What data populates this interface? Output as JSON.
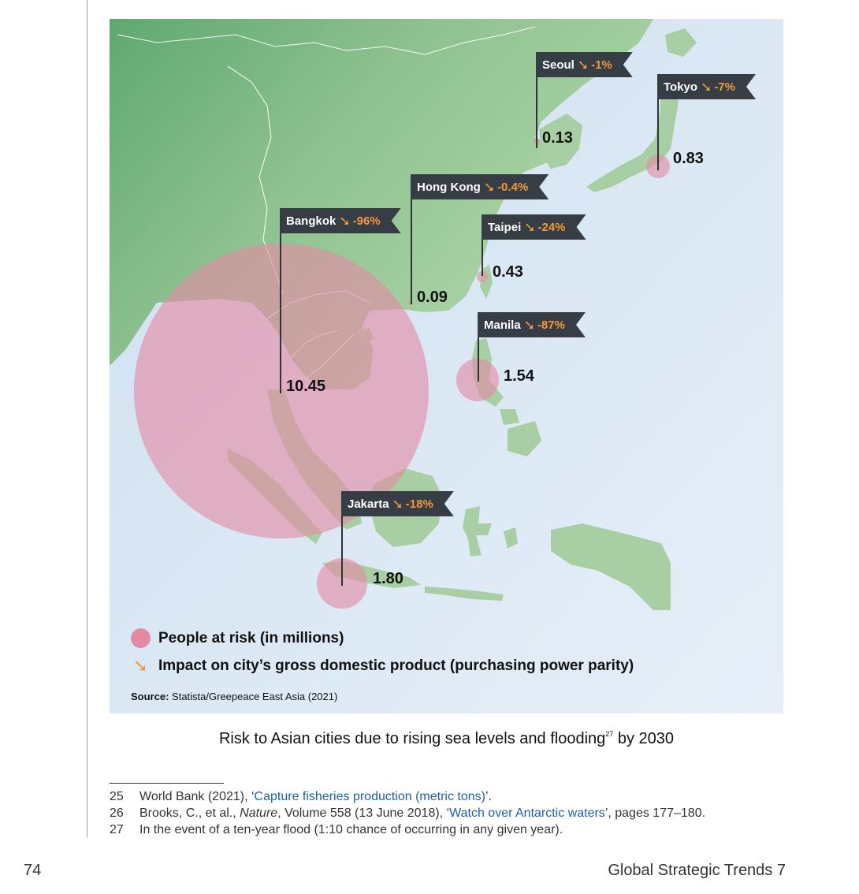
{
  "map": {
    "colors": {
      "sea": "#d8e6f3",
      "land": "#a6cfa2",
      "land_dark": "#5fa870",
      "border": "#ffffff",
      "risk_bubble": "#e48aa5",
      "label_bg": "#363d44",
      "impact_accent": "#f29a3a"
    },
    "cities": [
      {
        "name": "Seoul",
        "impact_icon": "arrow-down-right-icon",
        "impact": "-1%",
        "people_at_risk": "0.13",
        "people_millions": 0.13
      },
      {
        "name": "Tokyo",
        "impact_icon": "arrow-down-right-icon",
        "impact": "-7%",
        "people_at_risk": "0.83",
        "people_millions": 0.83
      },
      {
        "name": "Hong Kong",
        "impact_icon": "arrow-down-right-icon",
        "impact": "-0.4%",
        "people_at_risk": "0.09",
        "people_millions": 0.09
      },
      {
        "name": "Bangkok",
        "impact_icon": "arrow-down-right-icon",
        "impact": "-96%",
        "people_at_risk": "10.45",
        "people_millions": 10.45
      },
      {
        "name": "Taipei",
        "impact_icon": "arrow-down-right-icon",
        "impact": "-24%",
        "people_at_risk": "0.43",
        "people_millions": 0.43
      },
      {
        "name": "Manila",
        "impact_icon": "arrow-down-right-icon",
        "impact": "-87%",
        "people_at_risk": "1.54",
        "people_millions": 1.54
      },
      {
        "name": "Jakarta",
        "impact_icon": "arrow-down-right-icon",
        "impact": "-18%",
        "people_at_risk": "1.80",
        "people_millions": 1.8
      }
    ],
    "legend": {
      "people": "People at risk (in millions)",
      "impact": "Impact on city’s gross domestic product (purchasing power parity)",
      "impact_icon": "arrow-down-right-icon"
    },
    "source_label": "Source:",
    "source_text": "Statista/Greepeace East Asia (2021)"
  },
  "caption": {
    "text": "Risk to Asian cities due to rising sea levels and flooding",
    "sup": "27",
    "suffix": " by 2030"
  },
  "footnotes": [
    {
      "num": "25",
      "pre": "World Bank (2021), ‘",
      "link": "Capture fisheries production (metric tons)",
      "post": "’."
    },
    {
      "num": "26",
      "pre": "Brooks, C., et al., ",
      "italic": "Nature",
      "mid": ", Volume 558 (13 June 2018), ‘",
      "link": "Watch over Antarctic waters",
      "post": "’, pages 177–180."
    },
    {
      "num": "27",
      "pre": "In the event of a ten-year flood (1:10 chance of occurring in any given year)."
    }
  ],
  "page": {
    "number": "74",
    "running_title": "Global Strategic Trends 7"
  }
}
